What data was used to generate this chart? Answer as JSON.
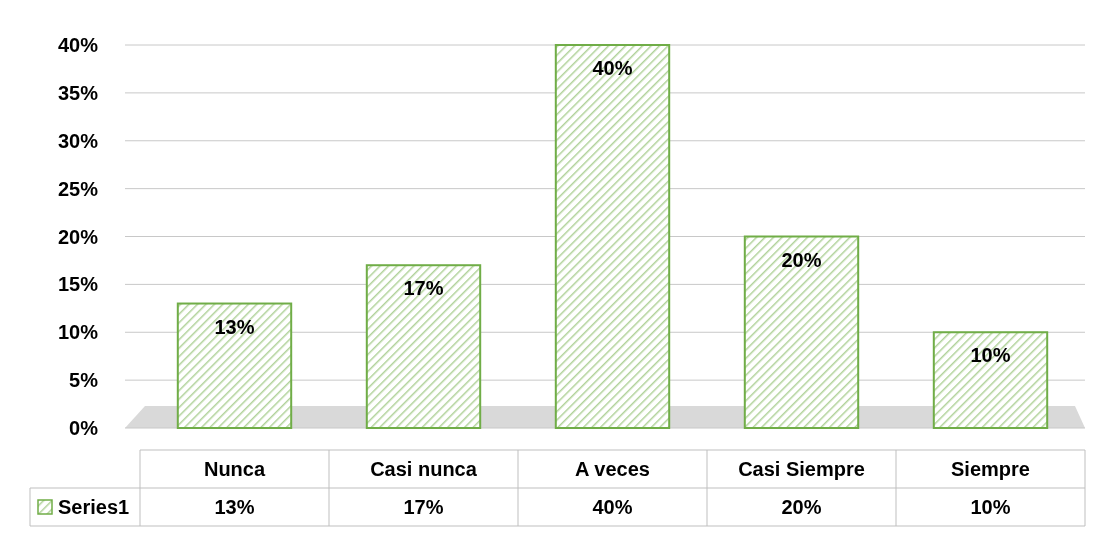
{
  "chart_data": {
    "type": "bar",
    "categories": [
      "Nunca",
      "Casi nunca",
      "A veces",
      "Casi Siempre",
      "Siempre"
    ],
    "series": [
      {
        "name": "Series1",
        "color": "#70ad47",
        "values": [
          13,
          17,
          40,
          20,
          10
        ],
        "value_labels": [
          "13%",
          "17%",
          "40%",
          "20%",
          "10%"
        ]
      }
    ],
    "ylim": [
      0,
      40
    ],
    "yticks": [
      {
        "value": 0,
        "label": "0%"
      },
      {
        "value": 5,
        "label": "5%"
      },
      {
        "value": 10,
        "label": "10%"
      },
      {
        "value": 15,
        "label": "15%"
      },
      {
        "value": 20,
        "label": "20%"
      },
      {
        "value": 25,
        "label": "25%"
      },
      {
        "value": 30,
        "label": "30%"
      },
      {
        "value": 35,
        "label": "35%"
      },
      {
        "value": 40,
        "label": "40%"
      }
    ],
    "grid": "y",
    "legend": "bottom"
  }
}
